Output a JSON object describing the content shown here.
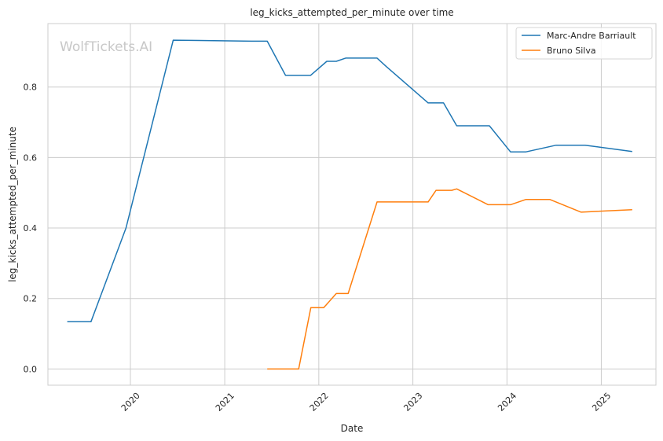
{
  "chart_data": {
    "type": "line",
    "title": "leg_kicks_attempted_per_minute over time",
    "xlabel": "Date",
    "ylabel": "leg_kicks_attempted_per_minute",
    "watermark": "WolfTickets.AI",
    "xlim": [
      "2019-02-15",
      "2025-08-01"
    ],
    "ylim": [
      -0.046,
      0.98
    ],
    "xticks": [
      {
        "date": "2020-01-01",
        "label": "2020"
      },
      {
        "date": "2021-01-01",
        "label": "2021"
      },
      {
        "date": "2022-01-01",
        "label": "2022"
      },
      {
        "date": "2023-01-01",
        "label": "2023"
      },
      {
        "date": "2024-01-01",
        "label": "2024"
      },
      {
        "date": "2025-01-01",
        "label": "2025"
      }
    ],
    "yticks": [
      {
        "value": 0.0,
        "label": "0.0"
      },
      {
        "value": 0.2,
        "label": "0.2"
      },
      {
        "value": 0.4,
        "label": "0.4"
      },
      {
        "value": 0.6,
        "label": "0.6"
      },
      {
        "value": 0.8,
        "label": "0.8"
      }
    ],
    "grid": true,
    "legend_position": "top-right",
    "series": [
      {
        "name": "Marc-Andre Barriault",
        "color": "#1f77b4",
        "points": [
          [
            "2019-05-01",
            0.134
          ],
          [
            "2019-08-01",
            0.134
          ],
          [
            "2019-12-15",
            0.4
          ],
          [
            "2020-06-15",
            0.933
          ],
          [
            "2021-04-15",
            0.93
          ],
          [
            "2021-06-15",
            0.93
          ],
          [
            "2021-08-25",
            0.833
          ],
          [
            "2021-11-30",
            0.833
          ],
          [
            "2022-02-01",
            0.873
          ],
          [
            "2022-03-10",
            0.873
          ],
          [
            "2022-04-15",
            0.882
          ],
          [
            "2022-08-15",
            0.882
          ],
          [
            "2022-09-20",
            0.858
          ],
          [
            "2023-03-01",
            0.755
          ],
          [
            "2023-04-30",
            0.755
          ],
          [
            "2023-06-20",
            0.69
          ],
          [
            "2023-10-25",
            0.69
          ],
          [
            "2024-01-15",
            0.616
          ],
          [
            "2024-03-15",
            0.616
          ],
          [
            "2024-07-10",
            0.635
          ],
          [
            "2024-10-30",
            0.635
          ],
          [
            "2025-05-01",
            0.617
          ]
        ]
      },
      {
        "name": "Bruno Silva",
        "color": "#ff7f0e",
        "points": [
          [
            "2021-06-15",
            0.0
          ],
          [
            "2021-10-15",
            0.0
          ],
          [
            "2021-12-01",
            0.174
          ],
          [
            "2022-01-20",
            0.174
          ],
          [
            "2022-03-10",
            0.214
          ],
          [
            "2022-04-25",
            0.214
          ],
          [
            "2022-08-15",
            0.474
          ],
          [
            "2023-03-01",
            0.474
          ],
          [
            "2023-04-01",
            0.507
          ],
          [
            "2023-06-01",
            0.507
          ],
          [
            "2023-06-20",
            0.511
          ],
          [
            "2023-10-20",
            0.466
          ],
          [
            "2024-01-15",
            0.466
          ],
          [
            "2024-03-15",
            0.481
          ],
          [
            "2024-06-15",
            0.481
          ],
          [
            "2024-10-15",
            0.445
          ],
          [
            "2025-05-01",
            0.452
          ]
        ]
      }
    ]
  }
}
